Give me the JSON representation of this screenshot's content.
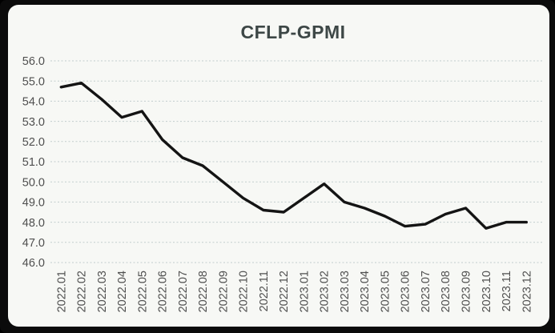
{
  "window": {
    "frame_color": "#0b0b0b",
    "panel_background": "#f7f8f5"
  },
  "chart_data": {
    "type": "line",
    "title": "CFLP-GPMI",
    "xlabel": "",
    "ylabel": "",
    "legend": false,
    "grid": true,
    "grid_style": "dashed-horizontal",
    "ylim": [
      46.0,
      56.0
    ],
    "y_tick_step": 1.0,
    "y_ticks": [
      "56.0",
      "55.0",
      "54.0",
      "53.0",
      "52.0",
      "51.0",
      "50.0",
      "49.0",
      "48.0",
      "47.0",
      "46.0"
    ],
    "categories": [
      "2022.01",
      "2022.02",
      "2022.03",
      "2022.04",
      "2022.05",
      "2022.06",
      "2022.07",
      "2022.08",
      "2022.09",
      "2022.10",
      "2022.11",
      "2022.12",
      "2023.01",
      "2023.02",
      "2023.03",
      "2023.04",
      "2023.05",
      "2023.06",
      "2023.07",
      "2023.08",
      "2023.09",
      "2023.10",
      "2023.11",
      "2023.12"
    ],
    "series": [
      {
        "name": "CFLP-GPMI",
        "values": [
          54.7,
          54.9,
          54.1,
          53.2,
          53.5,
          52.1,
          51.2,
          50.8,
          50.0,
          49.2,
          48.6,
          48.5,
          49.2,
          49.9,
          49.0,
          48.7,
          48.3,
          47.8,
          47.9,
          48.4,
          48.7,
          47.7,
          48.0,
          48.0
        ]
      }
    ],
    "colors": {
      "line": "#141414",
      "grid": "#c2cdcd",
      "title": "#3d4746",
      "axis_labels": "#4f4f4f"
    }
  }
}
